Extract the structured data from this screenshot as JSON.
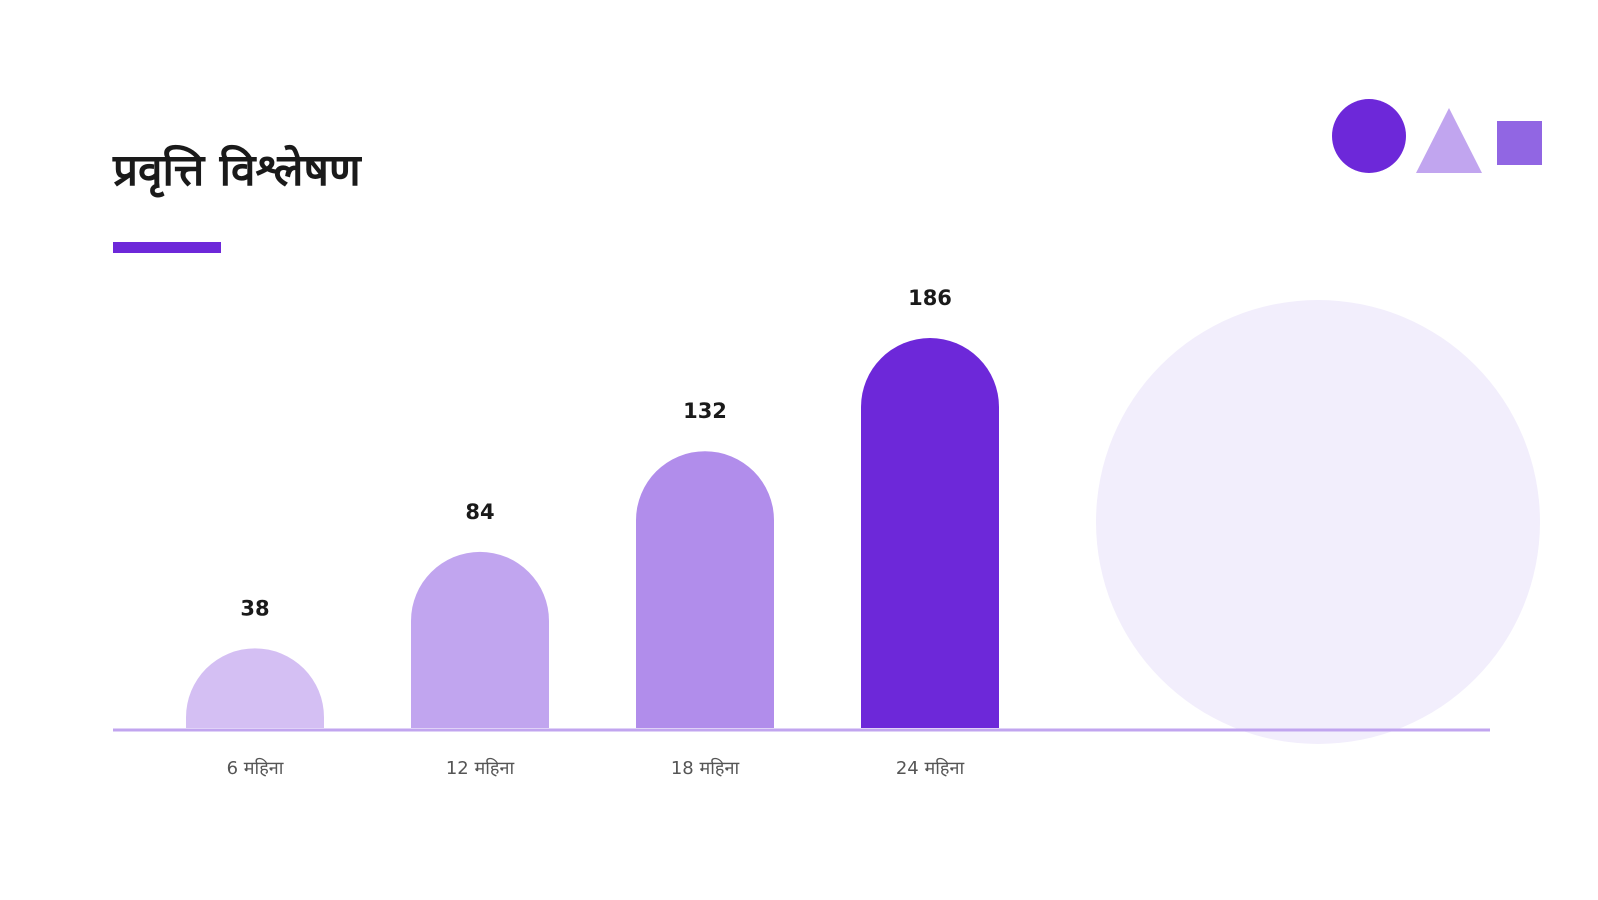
{
  "slide": {
    "title": "प्रवृत्ति विश्लेषण"
  },
  "colors": {
    "accent": "#6d28d9",
    "bar_1": "#d4bff3",
    "bar_2": "#c1a5ef",
    "bar_3": "#b18deb",
    "bar_4": "#6d28d9",
    "axis": "#c1a5ef",
    "deco_circle": "#6d28d9",
    "deco_triangle": "#c1a5ef",
    "deco_square": "#9166e3",
    "bg_circle": "#f2eefc"
  },
  "decorations": {
    "icons": [
      "circle-icon",
      "triangle-icon",
      "square-icon"
    ]
  },
  "chart_data": {
    "type": "bar",
    "categories": [
      "6 महिना",
      "12 महिना",
      "18 महिना",
      "24 महिना"
    ],
    "values": [
      38,
      84,
      132,
      186
    ],
    "value_labels": [
      "38",
      "84",
      "132",
      "186"
    ],
    "ylim": [
      0,
      200
    ],
    "grid": false,
    "title": "",
    "xlabel": "",
    "ylabel": ""
  }
}
